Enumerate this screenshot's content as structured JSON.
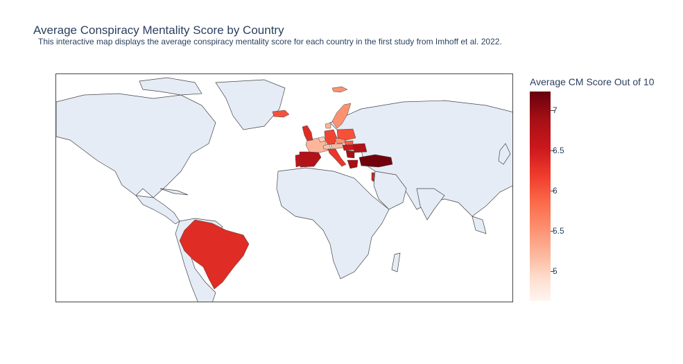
{
  "title": "Average Conspiracy Mentality Score by Country",
  "subtitle": "This interactive map displays the average conspiracy mentality score for each country in the first study from Imhoff et al. 2022.",
  "colorbar": {
    "title": "Average CM Score Out of 10",
    "ticks": [
      "7",
      "6.5",
      "6",
      "5.5",
      "5"
    ],
    "range": [
      4.6,
      7.25
    ],
    "colorscale": "Reds"
  },
  "colors": {
    "land": "#e5ecf6",
    "border": "#444444"
  },
  "countries": [
    {
      "name": "Brazil",
      "score": 6.4
    },
    {
      "name": "Portugal",
      "score": 6.7
    },
    {
      "name": "Spain",
      "score": 6.8
    },
    {
      "name": "France",
      "score": 5.3
    },
    {
      "name": "United Kingdom",
      "score": 6.4
    },
    {
      "name": "Belgium",
      "score": 5.1
    },
    {
      "name": "Germany",
      "score": 6.2
    },
    {
      "name": "Austria",
      "score": 5.3
    },
    {
      "name": "Switzerland",
      "score": 5.2
    },
    {
      "name": "Italy",
      "score": 6.3
    },
    {
      "name": "Hungary",
      "score": 6.6
    },
    {
      "name": "Romania",
      "score": 6.8
    },
    {
      "name": "Serbia",
      "score": 6.9
    },
    {
      "name": "Poland",
      "score": 6.1
    },
    {
      "name": "Czechia",
      "score": 5.6
    },
    {
      "name": "Slovakia",
      "score": 6.0
    },
    {
      "name": "Sweden",
      "score": 5.6
    },
    {
      "name": "Denmark",
      "score": 5.3
    },
    {
      "name": "Iceland",
      "score": 6.1
    },
    {
      "name": "Svalbard",
      "score": 5.6
    },
    {
      "name": "Greece",
      "score": 6.9
    },
    {
      "name": "Turkey",
      "score": 7.2
    },
    {
      "name": "Israel",
      "score": 6.5
    }
  ]
}
